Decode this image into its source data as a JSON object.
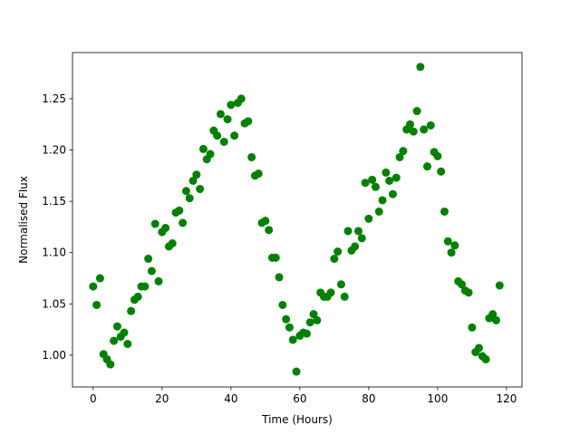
{
  "chart_data": {
    "type": "scatter",
    "x_label": "Time (Hours)",
    "y_label": "Normalised Flux",
    "color": "#008000",
    "xlim": [
      -6,
      124.5
    ],
    "ylim": [
      0.969,
      1.295
    ],
    "xticks": [
      0,
      20,
      40,
      60,
      80,
      100,
      120
    ],
    "yticks": [
      {
        "value": 1.0,
        "label": "1.00"
      },
      1.05,
      {
        "value": 1.1,
        "label": "1.10"
      },
      1.15,
      {
        "value": 1.2,
        "label": "1.20"
      },
      1.25
    ],
    "series": [
      {
        "name": "Flux",
        "color": "#008000",
        "x": [
          0,
          1,
          2,
          3,
          4,
          5,
          6,
          7,
          8,
          9,
          10,
          11,
          12,
          13,
          14,
          15,
          16,
          17,
          18,
          19,
          20,
          21,
          22,
          23,
          24,
          25,
          26,
          27,
          28,
          29,
          30,
          31,
          32,
          33,
          34,
          35,
          36,
          37,
          38,
          39,
          40,
          41,
          42,
          43,
          44,
          45,
          46,
          47,
          48,
          49,
          50,
          51,
          52,
          53,
          54,
          55,
          56,
          57,
          58,
          59,
          60,
          61,
          62,
          63,
          64,
          65,
          66,
          67,
          68,
          69,
          70,
          71,
          72,
          73,
          74,
          75,
          76,
          77,
          78,
          79,
          80,
          81,
          82,
          83,
          84,
          85,
          86,
          87,
          88,
          89,
          90,
          91,
          92,
          93,
          94,
          95,
          96,
          97,
          98,
          99,
          100,
          101,
          102,
          103,
          104,
          105,
          106,
          107,
          108,
          109,
          110,
          111,
          112,
          113,
          114,
          115,
          116,
          117,
          118
        ],
        "values": [
          1.067,
          1.049,
          1.075,
          1.001,
          0.996,
          0.991,
          1.014,
          1.028,
          1.018,
          1.022,
          1.011,
          1.043,
          1.054,
          1.057,
          1.067,
          1.067,
          1.094,
          1.082,
          1.128,
          1.072,
          1.12,
          1.124,
          1.106,
          1.109,
          1.139,
          1.141,
          1.129,
          1.16,
          1.153,
          1.17,
          1.176,
          1.162,
          1.201,
          1.191,
          1.196,
          1.219,
          1.214,
          1.235,
          1.208,
          1.23,
          1.244,
          1.214,
          1.246,
          1.25,
          1.226,
          1.228,
          1.193,
          1.175,
          1.177,
          1.129,
          1.131,
          1.122,
          1.095,
          1.095,
          1.076,
          1.049,
          1.035,
          1.027,
          1.015,
          0.984,
          1.019,
          1.022,
          1.021,
          1.032,
          1.04,
          1.034,
          1.061,
          1.057,
          1.057,
          1.061,
          1.094,
          1.101,
          1.069,
          1.057,
          1.121,
          1.102,
          1.106,
          1.121,
          1.114,
          1.168,
          1.133,
          1.171,
          1.164,
          1.14,
          1.151,
          1.178,
          1.17,
          1.157,
          1.173,
          1.193,
          1.199,
          1.22,
          1.225,
          1.218,
          1.238,
          1.281,
          1.22,
          1.184,
          1.224,
          1.198,
          1.194,
          1.179,
          1.14,
          1.111,
          1.1,
          1.107,
          1.072,
          1.069,
          1.063,
          1.061,
          1.027,
          1.003,
          1.007,
          0.999,
          0.996,
          1.036,
          1.04,
          1.034,
          1.068
        ]
      }
    ]
  }
}
